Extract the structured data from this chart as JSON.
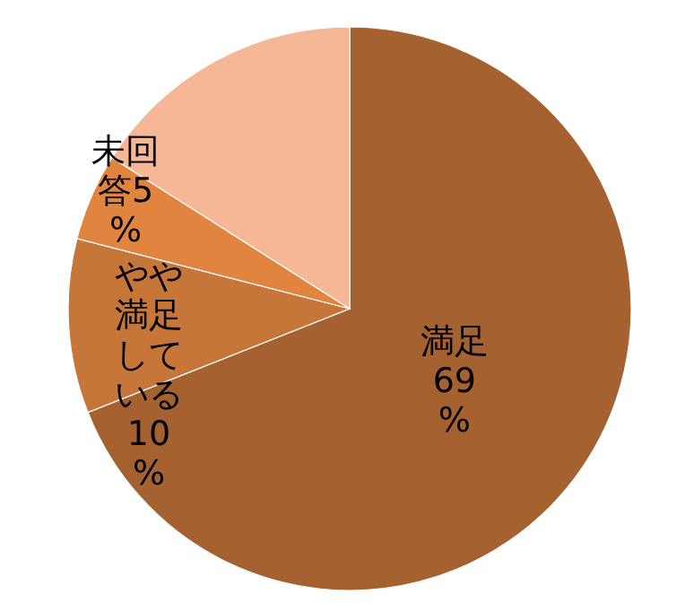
{
  "chart_data": {
    "type": "pie",
    "categories": [
      "満足",
      "やや満足している",
      "未回答",
      null
    ],
    "values": [
      69,
      10,
      5,
      16
    ],
    "value_labels": [
      "69%",
      "10%",
      "5%",
      null
    ],
    "colors": [
      "#a66131",
      "#c77639",
      "#e0843f",
      "#f5b795"
    ]
  }
}
